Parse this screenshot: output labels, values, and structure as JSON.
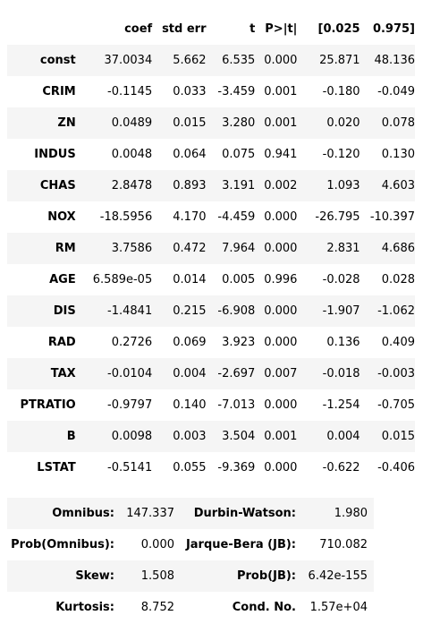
{
  "coefficients": {
    "headers": [
      "",
      "coef",
      "std err",
      "t",
      "P>|t|",
      "[0.025",
      "0.975]"
    ],
    "rows": [
      {
        "name": "const",
        "coef": "37.0034",
        "std_err": "5.662",
        "t": "6.535",
        "p": "0.000",
        "lo": "25.871",
        "hi": "48.136"
      },
      {
        "name": "CRIM",
        "coef": "-0.1145",
        "std_err": "0.033",
        "t": "-3.459",
        "p": "0.001",
        "lo": "-0.180",
        "hi": "-0.049"
      },
      {
        "name": "ZN",
        "coef": "0.0489",
        "std_err": "0.015",
        "t": "3.280",
        "p": "0.001",
        "lo": "0.020",
        "hi": "0.078"
      },
      {
        "name": "INDUS",
        "coef": "0.0048",
        "std_err": "0.064",
        "t": "0.075",
        "p": "0.941",
        "lo": "-0.120",
        "hi": "0.130"
      },
      {
        "name": "CHAS",
        "coef": "2.8478",
        "std_err": "0.893",
        "t": "3.191",
        "p": "0.002",
        "lo": "1.093",
        "hi": "4.603"
      },
      {
        "name": "NOX",
        "coef": "-18.5956",
        "std_err": "4.170",
        "t": "-4.459",
        "p": "0.000",
        "lo": "-26.795",
        "hi": "-10.397"
      },
      {
        "name": "RM",
        "coef": "3.7586",
        "std_err": "0.472",
        "t": "7.964",
        "p": "0.000",
        "lo": "2.831",
        "hi": "4.686"
      },
      {
        "name": "AGE",
        "coef": "6.589e-05",
        "std_err": "0.014",
        "t": "0.005",
        "p": "0.996",
        "lo": "-0.028",
        "hi": "0.028"
      },
      {
        "name": "DIS",
        "coef": "-1.4841",
        "std_err": "0.215",
        "t": "-6.908",
        "p": "0.000",
        "lo": "-1.907",
        "hi": "-1.062"
      },
      {
        "name": "RAD",
        "coef": "0.2726",
        "std_err": "0.069",
        "t": "3.923",
        "p": "0.000",
        "lo": "0.136",
        "hi": "0.409"
      },
      {
        "name": "TAX",
        "coef": "-0.0104",
        "std_err": "0.004",
        "t": "-2.697",
        "p": "0.007",
        "lo": "-0.018",
        "hi": "-0.003"
      },
      {
        "name": "PTRATIO",
        "coef": "-0.9797",
        "std_err": "0.140",
        "t": "-7.013",
        "p": "0.000",
        "lo": "-1.254",
        "hi": "-0.705"
      },
      {
        "name": "B",
        "coef": "0.0098",
        "std_err": "0.003",
        "t": "3.504",
        "p": "0.001",
        "lo": "0.004",
        "hi": "0.015"
      },
      {
        "name": "LSTAT",
        "coef": "-0.5141",
        "std_err": "0.055",
        "t": "-9.369",
        "p": "0.000",
        "lo": "-0.622",
        "hi": "-0.406"
      }
    ]
  },
  "diagnostics": {
    "rows": [
      {
        "label1": "Omnibus:",
        "value1": "147.337",
        "label2": "Durbin-Watson:",
        "value2": "1.980"
      },
      {
        "label1": "Prob(Omnibus):",
        "value1": "0.000",
        "label2": "Jarque-Bera (JB):",
        "value2": "710.082"
      },
      {
        "label1": "Skew:",
        "value1": "1.508",
        "label2": "Prob(JB):",
        "value2": "6.42e-155"
      },
      {
        "label1": "Kurtosis:",
        "value1": "8.752",
        "label2": "Cond. No.",
        "value2": "1.57e+04"
      }
    ]
  }
}
